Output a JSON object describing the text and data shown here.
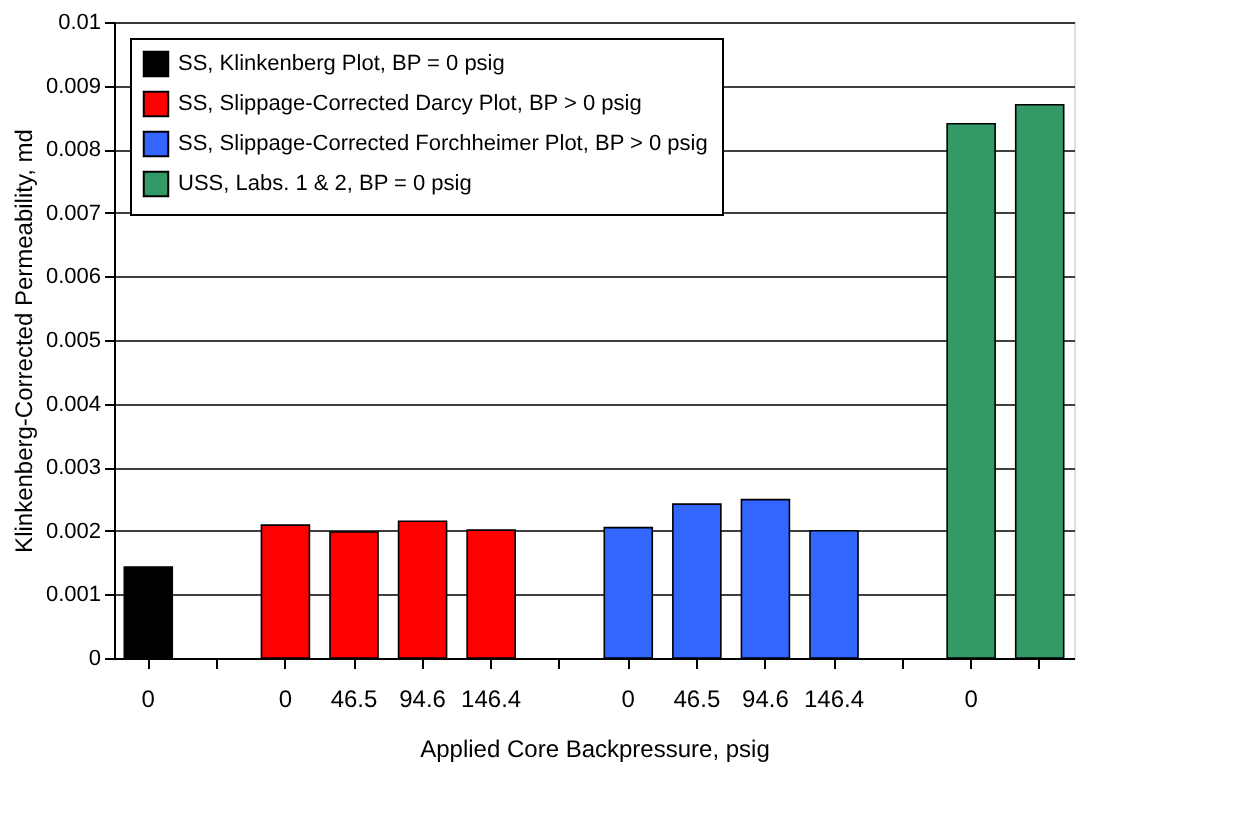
{
  "chart_data": {
    "type": "bar",
    "xlabel": "Applied Core Backpressure, psig",
    "ylabel": "Klinkenberg-Corrected Permeability, md",
    "categories": [
      "0",
      null,
      "0",
      "46.5",
      "94.6",
      "146.4",
      null,
      "0",
      "46.5",
      "94.6",
      "146.4",
      null,
      "0",
      null
    ],
    "series": [
      {
        "name": "SS, Klinkenberg Plot, BP = 0 psig",
        "color": "#000000",
        "values": [
          0.00143,
          null,
          null,
          null,
          null,
          null,
          null,
          null,
          null,
          null,
          null,
          null,
          null,
          null
        ]
      },
      {
        "name": "SS, Slippage-Corrected Darcy Plot, BP > 0 psig",
        "color": "#ff0000",
        "values": [
          null,
          null,
          0.00209,
          0.00198,
          0.00215,
          0.00201,
          null,
          null,
          null,
          null,
          null,
          null,
          null,
          null
        ]
      },
      {
        "name": "SS, Slippage-Corrected Forchheimer Plot, BP > 0 psig",
        "color": "#3366ff",
        "values": [
          null,
          null,
          null,
          null,
          null,
          null,
          null,
          0.00205,
          0.00242,
          0.00249,
          0.002,
          null,
          null,
          null
        ]
      },
      {
        "name": "USS, Labs. 1 & 2, BP = 0 psig",
        "color": "#339966",
        "values": [
          null,
          null,
          null,
          null,
          null,
          null,
          null,
          null,
          null,
          null,
          null,
          null,
          0.0084,
          0.0087
        ]
      }
    ],
    "ylim": [
      0,
      0.01
    ],
    "yticks": [
      0,
      0.001,
      0.002,
      0.003,
      0.004,
      0.005,
      0.006,
      0.007,
      0.008,
      0.009,
      0.01
    ],
    "grid": "y",
    "legend": "top left"
  }
}
